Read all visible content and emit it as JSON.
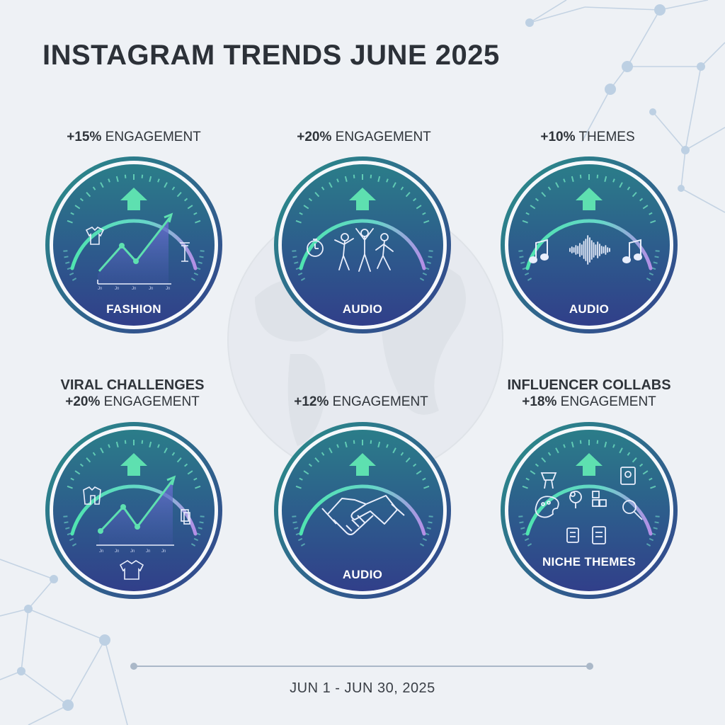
{
  "title": "INSTAGRAM TRENDS JUNE 2025",
  "date_range": "JUN 1 - JUN 30, 2025",
  "colors": {
    "accent": "#5ee0b0",
    "dial_dark": "#2f3f86",
    "dial_teal": "#2a7a86",
    "text": "#2c3138"
  },
  "cards": [
    {
      "heading": "",
      "stat": "+15%",
      "metric": "ENGAGEMENT",
      "label": "FASHION",
      "icon": "fashion-growth-chart-icon"
    },
    {
      "heading": "",
      "stat": "+20%",
      "metric": "ENGAGEMENT",
      "label": "AUDIO",
      "icon": "dancing-people-icon"
    },
    {
      "heading": "",
      "stat": "+10%",
      "metric": "THEMES",
      "label": "AUDIO",
      "icon": "music-waveform-icon"
    },
    {
      "heading": "VIRAL CHALLENGES",
      "stat": "+20%",
      "metric": "ENGAGEMENT",
      "label": "",
      "icon": "viral-growth-chart-icon"
    },
    {
      "heading": "",
      "stat": "+12%",
      "metric": "ENGAGEMENT",
      "label": "AUDIO",
      "icon": "handshake-icon"
    },
    {
      "heading": "INFLUENCER COLLABS",
      "stat": "+18%",
      "metric": "ENGAGEMENT",
      "label": "NICHE THEMES",
      "icon": "niche-theme-icons"
    }
  ]
}
